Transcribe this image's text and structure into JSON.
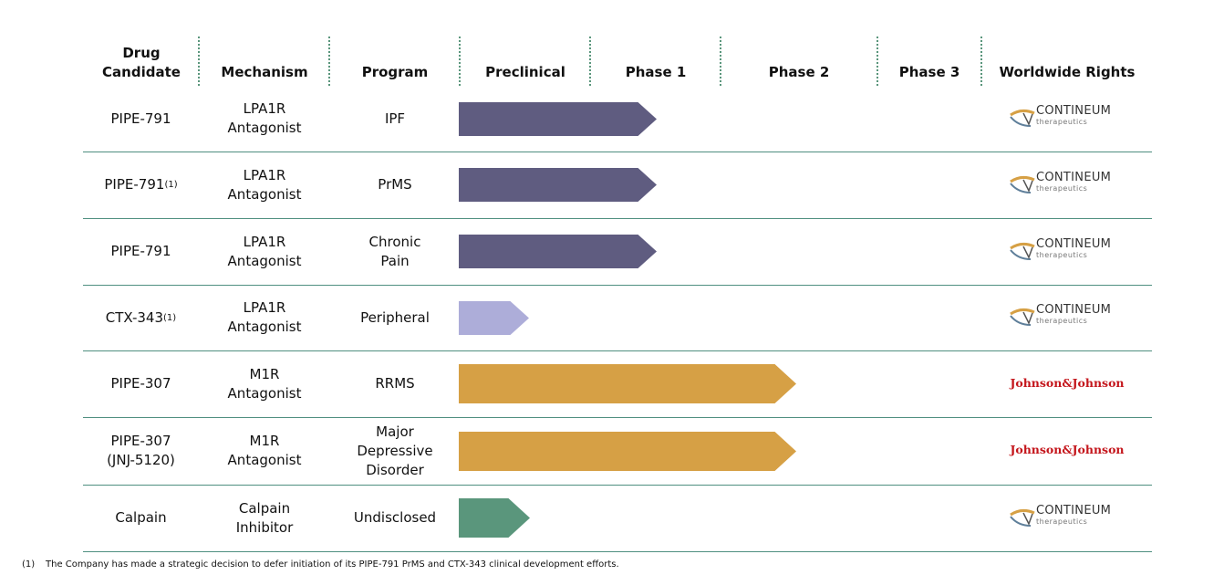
{
  "header": {
    "drug_candidate": "Drug Candidate",
    "mechanism": "Mechanism",
    "program": "Program",
    "preclinical": "Preclinical",
    "phase1": "Phase 1",
    "phase2": "Phase 2",
    "phase3": "Phase 3",
    "rights": "Worldwide Rights"
  },
  "rows": [
    {
      "candidate": "PIPE-791",
      "mechanism": "LPA1R Antagonist",
      "program": "IPF",
      "rights": "CONTINEUM",
      "rights_sub": "therapeutics"
    },
    {
      "candidate": "PIPE-791",
      "note": "(1)",
      "mechanism": "LPA1R Antagonist",
      "program": "PrMS",
      "rights": "CONTINEUM",
      "rights_sub": "therapeutics"
    },
    {
      "candidate": "PIPE-791",
      "mechanism": "LPA1R Antagonist",
      "program": "Chronic Pain",
      "rights": "CONTINEUM",
      "rights_sub": "therapeutics"
    },
    {
      "candidate": "CTX-343",
      "note": "(1)",
      "mechanism": "LPA1R Antagonist",
      "program": "Peripheral",
      "rights": "CONTINEUM",
      "rights_sub": "therapeutics"
    },
    {
      "candidate": "PIPE-307",
      "mechanism": "M1R Antagonist",
      "program": "RRMS",
      "rights": "Johnson&Johnson"
    },
    {
      "candidate": "PIPE-307 (JNJ-5120)",
      "mechanism": "M1R Antagonist",
      "program": "Major Depressive Disorder",
      "rights": "Johnson&Johnson"
    },
    {
      "candidate": "Calpain",
      "mechanism": "Calpain Inhibitor",
      "program": "Undisclosed",
      "rights": "CONTINEUM",
      "rights_sub": "therapeutics"
    }
  ],
  "footnote": {
    "marker": "(1)",
    "text": "The Company has made a strategic decision to defer initiation of its PIPE-791 PrMS and CTX-343 clinical development efforts."
  }
}
